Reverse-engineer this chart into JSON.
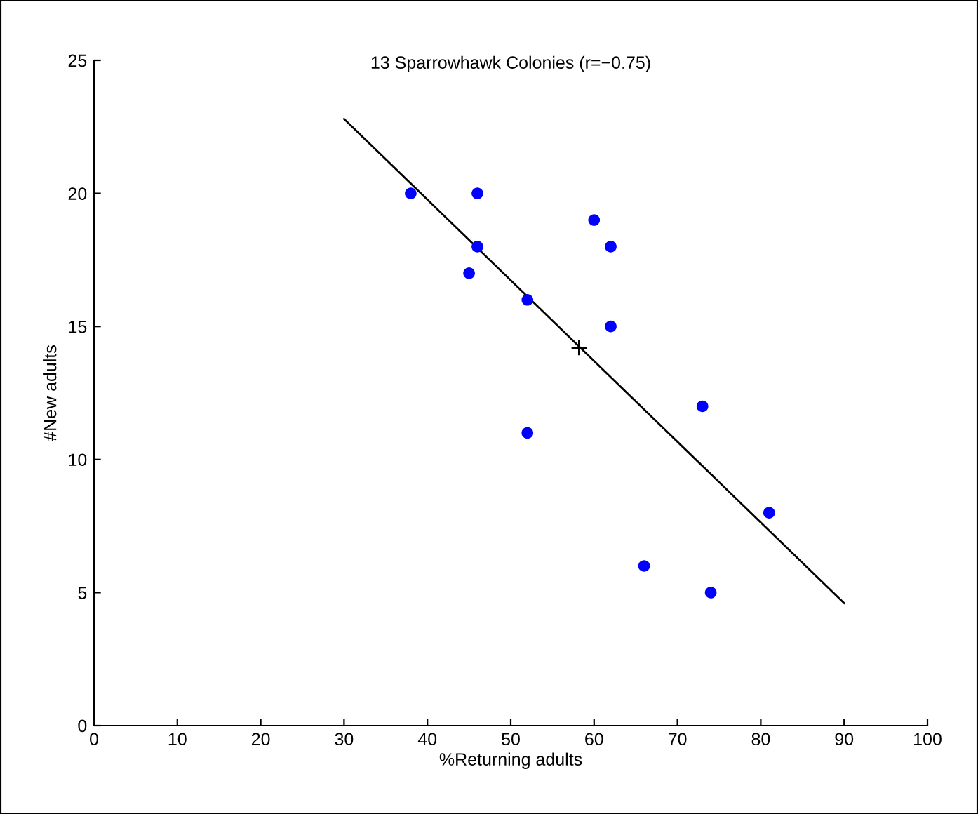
{
  "chart_data": {
    "type": "scatter",
    "title": "13 Sparrowhawk Colonies (r=−0.75)",
    "xlabel": "%Returning adults",
    "ylabel": "#New adults",
    "xlim": [
      0,
      100
    ],
    "xticks": [
      0,
      10,
      20,
      30,
      40,
      50,
      60,
      70,
      80,
      90,
      100
    ],
    "ylim": [
      0,
      25
    ],
    "yticks": [
      0,
      5,
      10,
      15,
      20,
      25
    ],
    "grid": false,
    "legend": false,
    "series": [
      {
        "marker": "circle",
        "color": "#0000ff",
        "x": [
          74,
          66,
          81,
          52,
          73,
          62,
          52,
          45,
          62,
          46,
          60,
          46,
          38
        ],
        "values": [
          5,
          6,
          8,
          11,
          12,
          15,
          16,
          17,
          18,
          18,
          19,
          20,
          20
        ]
      },
      {
        "type": "line",
        "marker": "none",
        "line_style": "solid",
        "color": "#000000",
        "x": [
          30,
          90
        ],
        "values": [
          22.8,
          4.6
        ]
      },
      {
        "marker": "cross",
        "color": "#000000",
        "x": [
          58.2
        ],
        "values": [
          14.2
        ]
      }
    ]
  }
}
